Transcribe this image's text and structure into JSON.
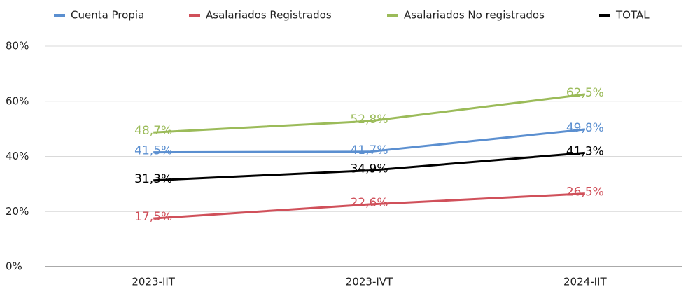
{
  "chart_data": {
    "type": "line",
    "categories": [
      "2023-IIT",
      "2023-IVT",
      "2024-IIT"
    ],
    "series": [
      {
        "name": "Cuenta Propia",
        "color": "#5b8fd0",
        "values": [
          41.5,
          41.7,
          49.8
        ],
        "value_labels": [
          "41,5%",
          "41,7%",
          "49,8%"
        ]
      },
      {
        "name": "Asalariados Registrados",
        "color": "#d0505a",
        "values": [
          17.5,
          22.6,
          26.5
        ],
        "value_labels": [
          "17,5%",
          "22,6%",
          "26,5%"
        ]
      },
      {
        "name": "Asalariados No registrados",
        "color": "#9bbb59",
        "values": [
          48.7,
          52.8,
          62.5
        ],
        "value_labels": [
          "48,7%",
          "52,8%",
          "62,5%"
        ]
      },
      {
        "name": "TOTAL",
        "color": "#000000",
        "values": [
          31.3,
          34.9,
          41.3
        ],
        "value_labels": [
          "31,3%",
          "34,9%",
          "41,3%"
        ]
      }
    ],
    "ylim": [
      0,
      80
    ],
    "yticks": [
      {
        "value": 0,
        "label": "0%"
      },
      {
        "value": 20,
        "label": "20%"
      },
      {
        "value": 40,
        "label": "40%"
      },
      {
        "value": 60,
        "label": "60%"
      },
      {
        "value": 80,
        "label": "80%"
      }
    ],
    "grid": true,
    "legend": "top"
  }
}
